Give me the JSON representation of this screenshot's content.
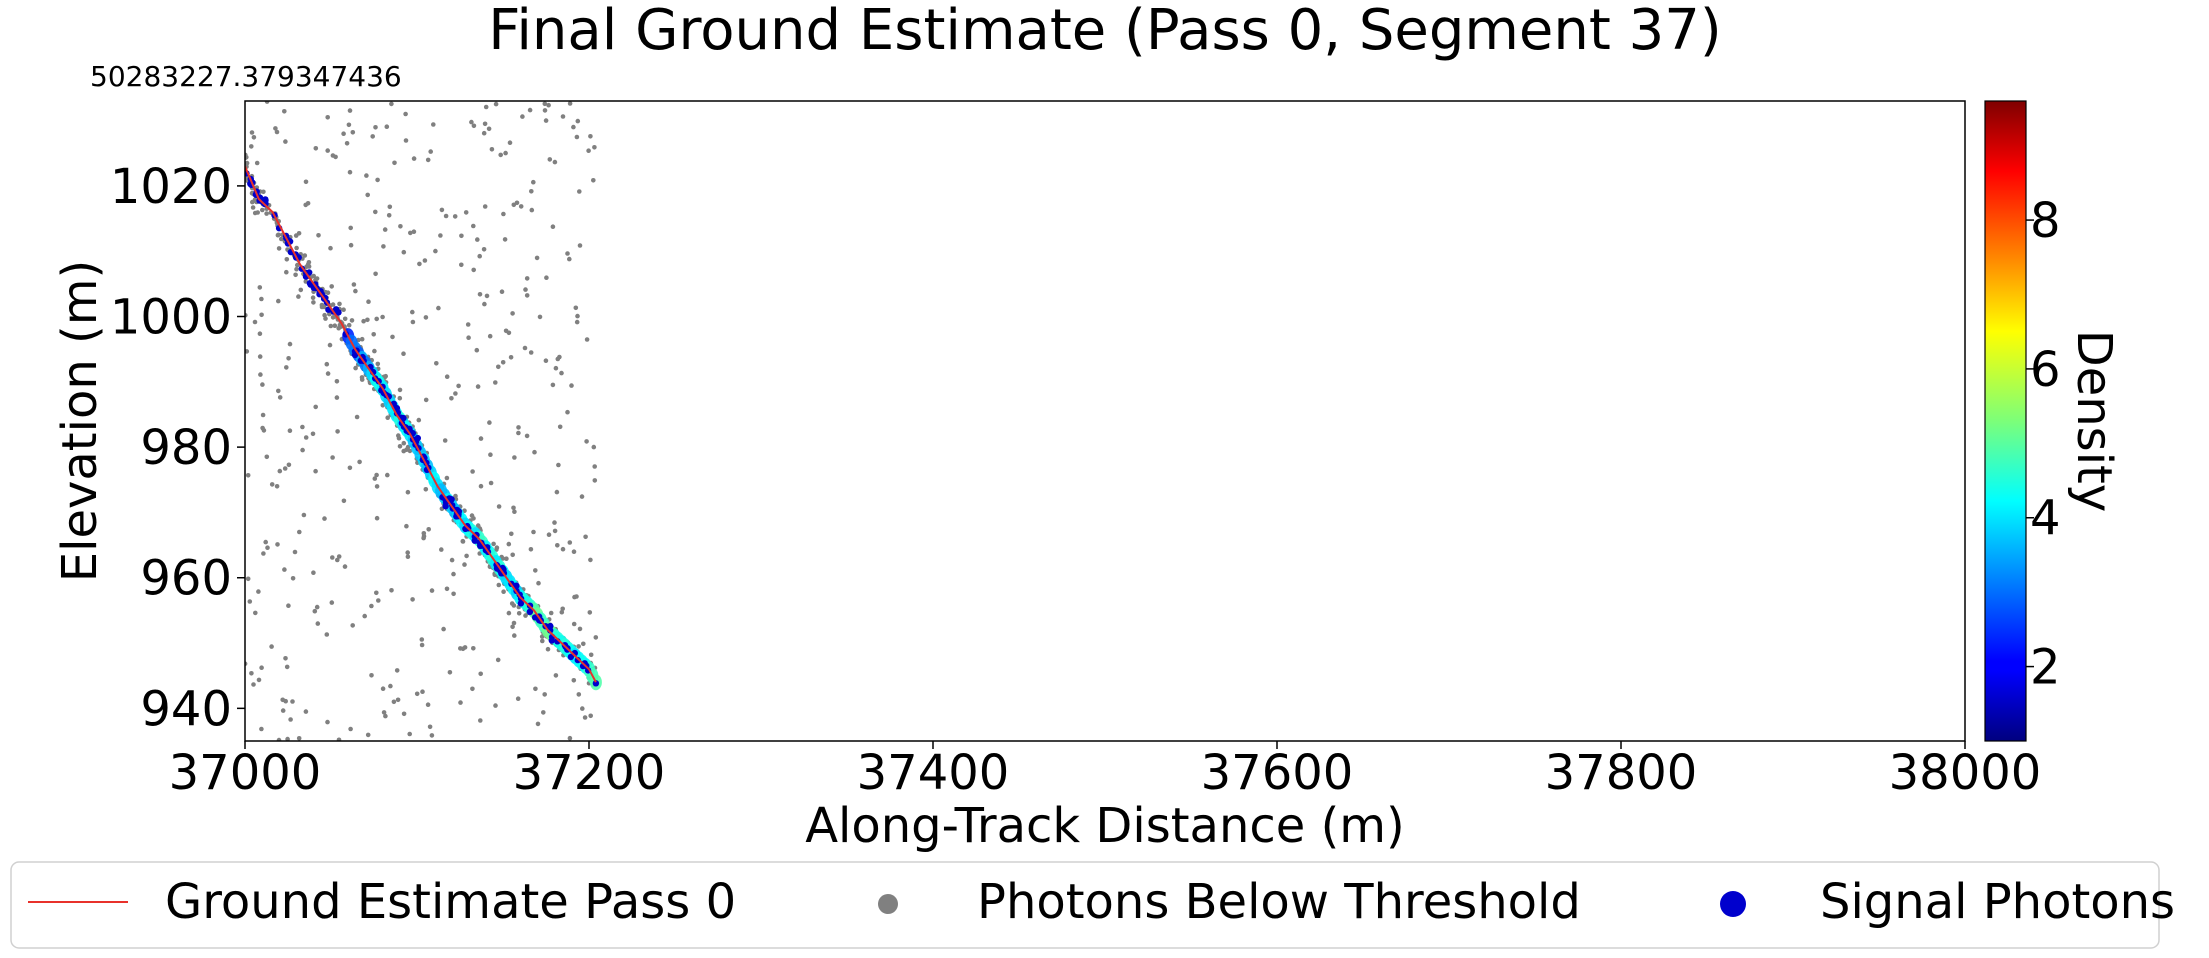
{
  "chart_data": {
    "type": "scatter",
    "title": "Final Ground Estimate (Pass 0, Segment 37)",
    "offset_text": "50283227.379347436",
    "xlabel": "Along-Track Distance (m)",
    "ylabel": "Elevation (m)",
    "xlim": [
      37000,
      38000
    ],
    "ylim": [
      935,
      1033
    ],
    "xticks": [
      37000,
      37200,
      37400,
      37600,
      37800,
      38000
    ],
    "yticks": [
      940,
      960,
      980,
      1000,
      1020
    ],
    "grid": false,
    "colorbar": {
      "label": "Density",
      "colormap": "jet",
      "range": [
        1,
        9.6
      ],
      "ticks": [
        2,
        4,
        6,
        8
      ]
    },
    "legend": {
      "placement": "bottom",
      "entries": [
        {
          "label": "Ground Estimate Pass 0",
          "kind": "line",
          "color": "#e8312b"
        },
        {
          "label": "Photons Below Threshold",
          "kind": "marker",
          "color": "#808080"
        },
        {
          "label": "Signal Photons",
          "kind": "marker",
          "color": "#0000cd"
        }
      ]
    },
    "series": [
      {
        "name": "Ground Estimate Pass 0",
        "kind": "line",
        "color": "#e8312b",
        "x": [
          37000,
          37008,
          37016,
          37024,
          37032,
          37040,
          37048,
          37056,
          37064,
          37072,
          37080,
          37088,
          37096,
          37104,
          37112,
          37120,
          37128,
          37136,
          37144,
          37152,
          37160,
          37168,
          37176,
          37184,
          37192,
          37200,
          37204
        ],
        "y": [
          1023,
          1018,
          1016,
          1012,
          1008,
          1005,
          1002,
          999,
          995,
          992,
          989,
          985,
          982,
          978,
          974,
          971,
          968,
          966,
          963,
          960,
          957,
          955,
          952,
          950,
          948,
          946,
          944
        ]
      },
      {
        "name": "Photons Below Threshold",
        "kind": "scatter",
        "color": "#808080",
        "x_range": [
          37000,
          37205
        ],
        "y_range": [
          935,
          1033
        ],
        "approx_count": 900
      },
      {
        "name": "Signal Photons",
        "kind": "scatter",
        "color": "#0000cd",
        "x_range": [
          37000,
          37205
        ],
        "follows": "Ground Estimate Pass 0",
        "approx_count": 160
      },
      {
        "name": "Density",
        "kind": "density-band",
        "x": [
          37000,
          37030,
          37060,
          37080,
          37100,
          37120,
          37140,
          37160,
          37175,
          37190,
          37204
        ],
        "density": [
          1.5,
          2.2,
          2.6,
          4.2,
          4.0,
          3.8,
          4.4,
          4.0,
          5.2,
          4.0,
          5.0
        ]
      }
    ]
  }
}
